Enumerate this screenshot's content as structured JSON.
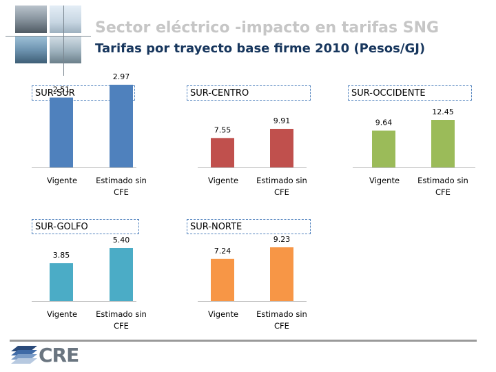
{
  "header": {
    "title": "Sector eléctrico -impacto en tarifas SNG",
    "subtitle": "Tarifas por trayecto base firme 2010 (Pesos/GJ)"
  },
  "logo": {
    "text": "CRE"
  },
  "colors": {
    "sur_sur": "#4f81bd",
    "sur_centro": "#c0504d",
    "sur_occidente": "#9bbb59",
    "sur_golfo": "#4bacc6",
    "sur_norte": "#f79646"
  },
  "chart_data": [
    {
      "type": "bar",
      "title": "SUR-SUR",
      "categories": [
        "Vigente",
        "Estimado sin CFE"
      ],
      "values": [
        2.51,
        2.97
      ],
      "value_labels": [
        "2.51",
        "2.97"
      ],
      "color_key": "sur_sur"
    },
    {
      "type": "bar",
      "title": "SUR-CENTRO",
      "categories": [
        "Vigente",
        "Estimado sin CFE"
      ],
      "values": [
        7.55,
        9.91
      ],
      "value_labels": [
        "7.55",
        "9.91"
      ],
      "color_key": "sur_centro"
    },
    {
      "type": "bar",
      "title": "SUR-OCCIDENTE",
      "categories": [
        "Vigente",
        "Estimado sin CFE"
      ],
      "values": [
        9.64,
        12.45
      ],
      "value_labels": [
        "9.64",
        "12.45"
      ],
      "color_key": "sur_occidente"
    },
    {
      "type": "bar",
      "title": "SUR-GOLFO",
      "categories": [
        "Vigente",
        "Estimado sin CFE"
      ],
      "values": [
        3.85,
        5.4
      ],
      "value_labels": [
        "3.85",
        "5.40"
      ],
      "color_key": "sur_golfo"
    },
    {
      "type": "bar",
      "title": "SUR-NORTE",
      "categories": [
        "Vigente",
        "Estimado sin CFE"
      ],
      "values": [
        7.24,
        9.23
      ],
      "value_labels": [
        "7.24",
        "9.23"
      ],
      "color_key": "sur_norte"
    }
  ]
}
